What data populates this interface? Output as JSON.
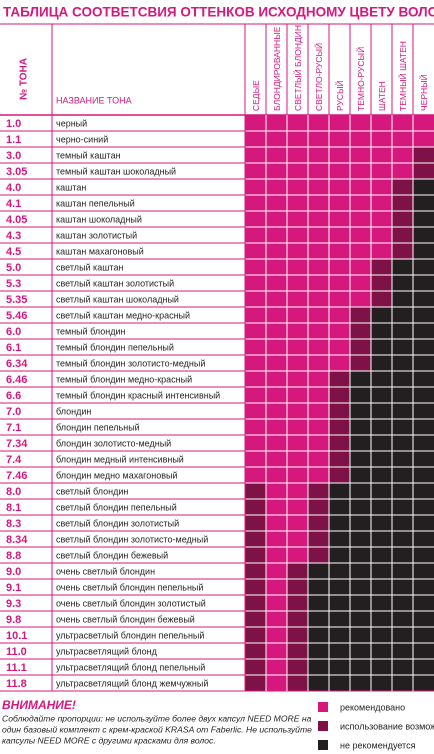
{
  "title": "ТАБЛИЦА СООТВЕТСВИЯ ОТТЕНКОВ ИСХОДНОМУ ЦВЕТУ ВОЛОС",
  "header": {
    "number": "№ ТОНА",
    "name": "НАЗВАНИЕ ТОНА",
    "columns": [
      "СЕДЫЕ",
      "БЛОНДИРОВАННЫЕ",
      "СВЕТЛЫЙ БЛОНДИН",
      "СВЕТЛО-РУСЫЙ",
      "РУСЫЙ",
      "ТЕМНО-РУСЫЙ",
      "ШАТЕН",
      "ТЕМНЫЙ ШАТЕН",
      "ЧЕРНЫЙ"
    ]
  },
  "legend": [
    {
      "label": "рекомендовано",
      "color": "#d6187e"
    },
    {
      "label": "использование возможно",
      "color": "#7e1146"
    },
    {
      "label": "не рекомендуется",
      "color": "#231f20"
    }
  ],
  "rows": [
    {
      "number": "1.0",
      "name": "черный",
      "cells": [
        0,
        0,
        0,
        0,
        0,
        0,
        0,
        0,
        0
      ]
    },
    {
      "number": "1.1",
      "name": "черно-синий",
      "cells": [
        0,
        0,
        0,
        0,
        0,
        0,
        0,
        0,
        0
      ]
    },
    {
      "number": "3.0",
      "name": "темный каштан",
      "cells": [
        0,
        0,
        0,
        0,
        0,
        0,
        0,
        0,
        1
      ]
    },
    {
      "number": "3.05",
      "name": "темный каштан шоколадный",
      "cells": [
        0,
        0,
        0,
        0,
        0,
        0,
        0,
        0,
        1
      ]
    },
    {
      "number": "4.0",
      "name": "каштан",
      "cells": [
        0,
        0,
        0,
        0,
        0,
        0,
        0,
        1,
        2
      ]
    },
    {
      "number": "4.1",
      "name": "каштан пепельный",
      "cells": [
        0,
        0,
        0,
        0,
        0,
        0,
        0,
        1,
        2
      ]
    },
    {
      "number": "4.05",
      "name": "каштан шоколадный",
      "cells": [
        0,
        0,
        0,
        0,
        0,
        0,
        0,
        1,
        2
      ]
    },
    {
      "number": "4.3",
      "name": "каштан золотистый",
      "cells": [
        0,
        0,
        0,
        0,
        0,
        0,
        0,
        1,
        2
      ]
    },
    {
      "number": "4.5",
      "name": "каштан махагоновый",
      "cells": [
        0,
        0,
        0,
        0,
        0,
        0,
        0,
        1,
        2
      ]
    },
    {
      "number": "5.0",
      "name": "светлый каштан",
      "cells": [
        0,
        0,
        0,
        0,
        0,
        0,
        1,
        2,
        2
      ]
    },
    {
      "number": "5.3",
      "name": "светлый каштан золотистый",
      "cells": [
        0,
        0,
        0,
        0,
        0,
        0,
        1,
        2,
        2
      ]
    },
    {
      "number": "5.35",
      "name": "светлый каштан шоколадный",
      "cells": [
        0,
        0,
        0,
        0,
        0,
        0,
        1,
        2,
        2
      ]
    },
    {
      "number": "5.46",
      "name": "светлый каштан медно-красный",
      "cells": [
        0,
        0,
        0,
        0,
        0,
        1,
        2,
        2,
        2
      ]
    },
    {
      "number": "6.0",
      "name": "темный блондин",
      "cells": [
        0,
        0,
        0,
        0,
        0,
        1,
        2,
        2,
        2
      ]
    },
    {
      "number": "6.1",
      "name": "темный блондин пепельный",
      "cells": [
        0,
        0,
        0,
        0,
        0,
        1,
        2,
        2,
        2
      ]
    },
    {
      "number": "6.34",
      "name": "темный блондин золотисто-медный",
      "cells": [
        0,
        0,
        0,
        0,
        0,
        1,
        2,
        2,
        2
      ]
    },
    {
      "number": "6.46",
      "name": "темный блондин медно-красный",
      "cells": [
        0,
        0,
        0,
        0,
        1,
        2,
        2,
        2,
        2
      ]
    },
    {
      "number": "6.6",
      "name": "темный блондин красный интенсивный",
      "cells": [
        0,
        0,
        0,
        0,
        1,
        2,
        2,
        2,
        2
      ]
    },
    {
      "number": "7.0",
      "name": "блондин",
      "cells": [
        0,
        0,
        0,
        0,
        1,
        2,
        2,
        2,
        2
      ]
    },
    {
      "number": "7.1",
      "name": "блондин пепельный",
      "cells": [
        0,
        0,
        0,
        0,
        1,
        2,
        2,
        2,
        2
      ]
    },
    {
      "number": "7.34",
      "name": "блондин золотисто-медный",
      "cells": [
        0,
        0,
        0,
        0,
        1,
        2,
        2,
        2,
        2
      ]
    },
    {
      "number": "7.4",
      "name": "блондин медный интенсивный",
      "cells": [
        0,
        0,
        0,
        0,
        1,
        2,
        2,
        2,
        2
      ]
    },
    {
      "number": "7.46",
      "name": "блондин медно махагоновый",
      "cells": [
        0,
        0,
        0,
        0,
        1,
        2,
        2,
        2,
        2
      ]
    },
    {
      "number": "8.0",
      "name": "светлый блондин",
      "cells": [
        1,
        0,
        0,
        1,
        2,
        2,
        2,
        2,
        2
      ]
    },
    {
      "number": "8.1",
      "name": "светлый блондин пепельный",
      "cells": [
        1,
        0,
        0,
        1,
        2,
        2,
        2,
        2,
        2
      ]
    },
    {
      "number": "8.3",
      "name": "светлый блондин золотистый",
      "cells": [
        1,
        0,
        0,
        1,
        2,
        2,
        2,
        2,
        2
      ]
    },
    {
      "number": "8.34",
      "name": "светлый блондин золотисто-медный",
      "cells": [
        1,
        0,
        0,
        1,
        2,
        2,
        2,
        2,
        2
      ]
    },
    {
      "number": "8.8",
      "name": "светлый блондин бежевый",
      "cells": [
        1,
        0,
        0,
        1,
        2,
        2,
        2,
        2,
        2
      ]
    },
    {
      "number": "9.0",
      "name": "очень светлый блондин",
      "cells": [
        1,
        0,
        1,
        2,
        2,
        2,
        2,
        2,
        2
      ]
    },
    {
      "number": "9.1",
      "name": "очень светлый блондин пепельный",
      "cells": [
        1,
        0,
        1,
        2,
        2,
        2,
        2,
        2,
        2
      ]
    },
    {
      "number": "9.3",
      "name": "очень светлый блондин золотистый",
      "cells": [
        1,
        0,
        1,
        2,
        2,
        2,
        2,
        2,
        2
      ]
    },
    {
      "number": "9.8",
      "name": "очень светлый блондин бежевый",
      "cells": [
        1,
        0,
        1,
        2,
        2,
        2,
        2,
        2,
        2
      ]
    },
    {
      "number": "10.1",
      "name": "ультрасветлый блондин пепельный",
      "cells": [
        1,
        0,
        1,
        2,
        2,
        2,
        2,
        2,
        2
      ]
    },
    {
      "number": "11.0",
      "name": "ультрасветлящий блонд",
      "cells": [
        1,
        0,
        1,
        2,
        2,
        2,
        2,
        2,
        2
      ]
    },
    {
      "number": "11.1",
      "name": "ультрасветлящий блонд пепельный",
      "cells": [
        1,
        0,
        1,
        2,
        2,
        2,
        2,
        2,
        2
      ]
    },
    {
      "number": "11.8",
      "name": "ультрасветлящий блонд жемчужный",
      "cells": [
        1,
        0,
        1,
        2,
        2,
        2,
        2,
        2,
        2
      ]
    }
  ],
  "notice": {
    "title": "ВНИМАНИЕ!",
    "lines": [
      "Соблюдайте пропорции: не используйте более двух капсул NEED MORE на",
      "один базовый комплект с крем-краской KRASA от Faberlic. Не используйте",
      "капсулы NEED MORE с другими красками для волос."
    ]
  }
}
